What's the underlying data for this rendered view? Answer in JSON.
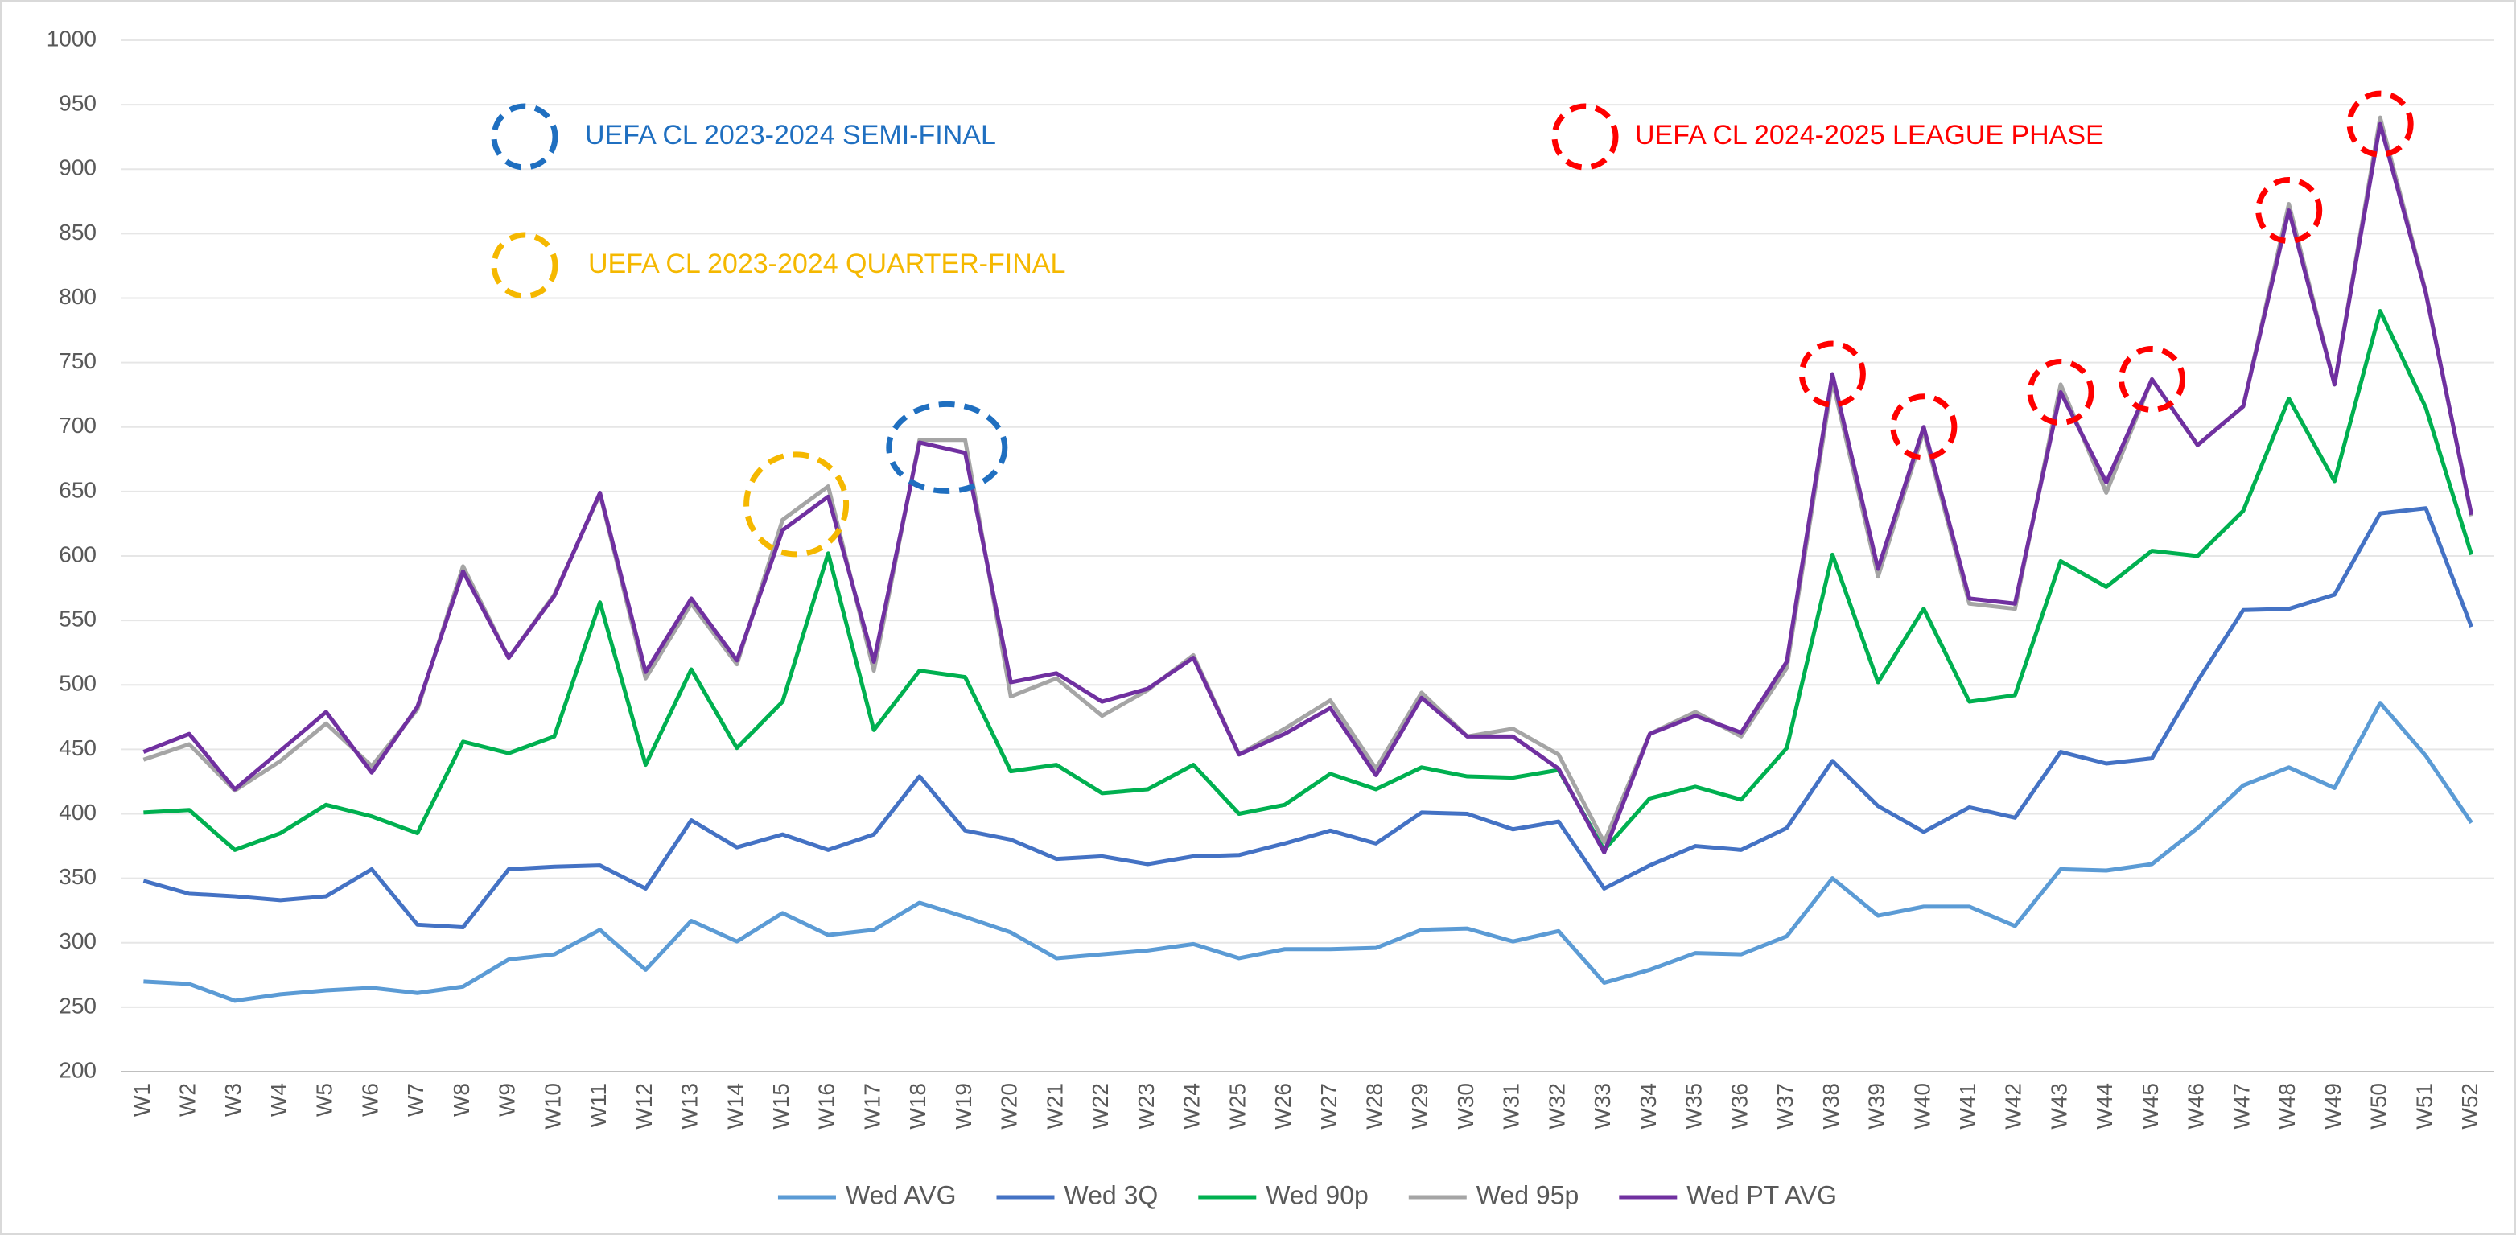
{
  "chart_data": {
    "type": "line",
    "categories": [
      "W1",
      "W2",
      "W3",
      "W4",
      "W5",
      "W6",
      "W7",
      "W8",
      "W9",
      "W10",
      "W11",
      "W12",
      "W13",
      "W14",
      "W15",
      "W16",
      "W17",
      "W18",
      "W19",
      "W20",
      "W21",
      "W22",
      "W23",
      "W24",
      "W25",
      "W26",
      "W27",
      "W28",
      "W29",
      "W30",
      "W31",
      "W32",
      "W33",
      "W34",
      "W35",
      "W36",
      "W37",
      "W38",
      "W39",
      "W40",
      "W41",
      "W42",
      "W43",
      "W44",
      "W45",
      "W46",
      "W47",
      "W48",
      "W49",
      "W50",
      "W51",
      "W52"
    ],
    "series": [
      {
        "name": "Wed AVG",
        "color": "#5b9bd5",
        "values": [
          270,
          268,
          255,
          260,
          263,
          265,
          261,
          266,
          287,
          291,
          310,
          279,
          317,
          301,
          323,
          306,
          310,
          331,
          320,
          308,
          288,
          291,
          294,
          299,
          288,
          295,
          295,
          296,
          310,
          311,
          301,
          309,
          269,
          279,
          292,
          291,
          305,
          350,
          321,
          328,
          328,
          313,
          357,
          356,
          361,
          389,
          422,
          436,
          420,
          486,
          445,
          393
        ]
      },
      {
        "name": "Wed 3Q",
        "color": "#4472c4",
        "values": [
          348,
          338,
          336,
          333,
          336,
          357,
          314,
          312,
          357,
          359,
          360,
          342,
          395,
          374,
          384,
          372,
          384,
          429,
          387,
          380,
          365,
          367,
          361,
          367,
          368,
          377,
          387,
          377,
          401,
          400,
          388,
          394,
          342,
          360,
          375,
          372,
          389,
          441,
          406,
          386,
          405,
          397,
          448,
          439,
          443,
          503,
          558,
          559,
          570,
          633,
          637,
          545
        ]
      },
      {
        "name": "Wed 90p",
        "color": "#00b050",
        "values": [
          401,
          403,
          372,
          385,
          407,
          398,
          385,
          456,
          447,
          460,
          564,
          438,
          512,
          451,
          487,
          602,
          465,
          511,
          506,
          433,
          438,
          416,
          419,
          438,
          400,
          407,
          431,
          419,
          436,
          429,
          428,
          434,
          372,
          412,
          421,
          411,
          451,
          601,
          502,
          559,
          487,
          492,
          596,
          576,
          604,
          600,
          635,
          722,
          658,
          790,
          715,
          601
        ]
      },
      {
        "name": "Wed 95p",
        "color": "#a5a5a5",
        "values": [
          442,
          454,
          418,
          441,
          470,
          437,
          481,
          592,
          521,
          570,
          648,
          505,
          563,
          516,
          628,
          654,
          511,
          690,
          690,
          491,
          505,
          476,
          496,
          523,
          446,
          466,
          488,
          435,
          494,
          460,
          466,
          446,
          378,
          462,
          479,
          460,
          513,
          736,
          584,
          697,
          563,
          559,
          733,
          649,
          737,
          686,
          716,
          873,
          733,
          940,
          805,
          631
        ]
      },
      {
        "name": "Wed PT AVG",
        "color": "#7030a0",
        "values": [
          448,
          462,
          419,
          449,
          479,
          432,
          483,
          588,
          521,
          569,
          649,
          510,
          567,
          519,
          620,
          646,
          518,
          688,
          680,
          502,
          509,
          487,
          497,
          521,
          446,
          462,
          482,
          430,
          490,
          460,
          460,
          435,
          370,
          462,
          476,
          463,
          518,
          741,
          590,
          700,
          567,
          563,
          727,
          657,
          737,
          686,
          716,
          868,
          733,
          935,
          804,
          632
        ]
      }
    ],
    "ylim": [
      200,
      1000
    ],
    "yticks": [
      200,
      250,
      300,
      350,
      400,
      450,
      500,
      550,
      600,
      650,
      700,
      750,
      800,
      850,
      900,
      950,
      1000
    ],
    "grid": true,
    "legend": "bottom",
    "annotations": [
      {
        "text": "UEFA CL 2023-2024 SEMI-FINAL",
        "color": "#1f6fc0"
      },
      {
        "text": "UEFA CL 2023-2024 QUARTER-FINAL",
        "color": "#f5b800"
      },
      {
        "text": "UEFA CL 2024-2025 LEAGUE PHASE",
        "color": "#ff0000"
      }
    ]
  }
}
